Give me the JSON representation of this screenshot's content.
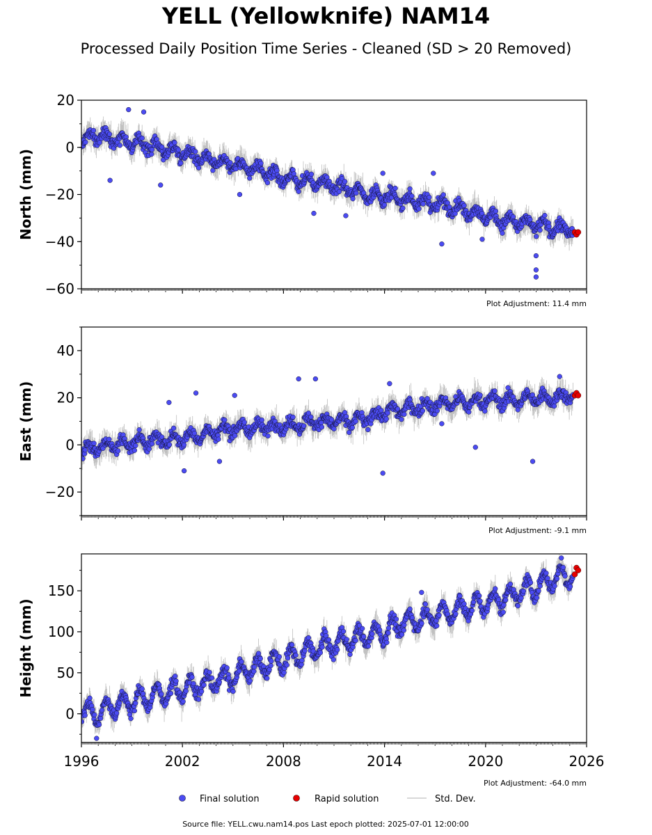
{
  "title": "YELL (Yellowknife) NAM14",
  "subtitle": "Processed Daily Position Time Series - Cleaned (SD > 20 Removed)",
  "footer": "Source file: YELL.cwu.nam14.pos  Last epoch plotted: 2025-07-01 12:00:00",
  "legend": {
    "placement": "bottom-center",
    "items": [
      {
        "label": "Final solution",
        "color": "#4444ee",
        "kind": "dot"
      },
      {
        "label": "Rapid solution",
        "color": "#ee0000",
        "kind": "dot"
      },
      {
        "label": "Std. Dev.",
        "color": "#cccccc",
        "kind": "line"
      }
    ]
  },
  "colors": {
    "final": "#4b4bf2",
    "final_edge": "#111133",
    "rapid": "#e60000",
    "std": "#bdbdbd"
  },
  "chart_data": [
    {
      "type": "scatter",
      "ylabel": "North (mm)",
      "adjustment": "Plot Adjustment: 11.4 mm",
      "xlim": [
        1996,
        2026
      ],
      "ylim": [
        -60,
        20
      ],
      "yticks": [
        20,
        0,
        -20,
        -40,
        -60
      ],
      "show_xtick_labels": false,
      "trend": {
        "start": 4,
        "end": -34
      },
      "series": [
        {
          "name": "Final solution",
          "kind": "final",
          "x": [
            1996.0,
            1997.0,
            1998.0,
            1999.0,
            2000.0,
            2001.0,
            2002.0,
            2003.0,
            2004.0,
            2005.0,
            2006.0,
            2007.0,
            2008.0,
            2009.0,
            2010.0,
            2011.0,
            2012.0,
            2013.0,
            2014.0,
            2015.0,
            2016.0,
            2017.0,
            2018.0,
            2019.0,
            2020.0,
            2021.0,
            2022.0,
            2023.0,
            2024.0,
            2025.0
          ],
          "y": [
            3,
            5,
            4,
            2,
            1,
            -1,
            -2,
            -4,
            -6,
            -7,
            -9,
            -11,
            -13,
            -14,
            -15,
            -16,
            -18,
            -20,
            -21,
            -22,
            -23,
            -24,
            -25,
            -27,
            -29,
            -31,
            -32,
            -33,
            -34,
            -35
          ]
        },
        {
          "name": "Rapid solution",
          "kind": "rapid",
          "x": [
            2025.3,
            2025.4,
            2025.5
          ],
          "y": [
            -36,
            -37,
            -36
          ]
        }
      ],
      "outliers": [
        {
          "x": 1998.8,
          "y": 16
        },
        {
          "x": 1999.7,
          "y": 15
        },
        {
          "x": 2000.7,
          "y": -16
        },
        {
          "x": 1997.7,
          "y": -14
        },
        {
          "x": 2005.4,
          "y": -20
        },
        {
          "x": 2009.8,
          "y": -28
        },
        {
          "x": 2011.7,
          "y": -29
        },
        {
          "x": 2013.9,
          "y": -11
        },
        {
          "x": 2016.9,
          "y": -11
        },
        {
          "x": 2017.4,
          "y": -41
        },
        {
          "x": 2019.8,
          "y": -39
        },
        {
          "x": 2023.0,
          "y": -46
        },
        {
          "x": 2023.0,
          "y": -52
        },
        {
          "x": 2023.0,
          "y": -55
        }
      ]
    },
    {
      "type": "scatter",
      "ylabel": "East (mm)",
      "adjustment": "Plot Adjustment: -9.1 mm",
      "xlim": [
        1996,
        2026
      ],
      "ylim": [
        -30,
        50
      ],
      "yticks": [
        40,
        20,
        0,
        -20
      ],
      "show_xtick_labels": false,
      "trend": {
        "start": -2,
        "end": 22
      },
      "series": [
        {
          "name": "Final solution",
          "kind": "final",
          "x": [
            1996.0,
            1997.0,
            1998.0,
            1999.0,
            2000.0,
            2001.0,
            2002.0,
            2003.0,
            2004.0,
            2005.0,
            2006.0,
            2007.0,
            2008.0,
            2009.0,
            2010.0,
            2011.0,
            2012.0,
            2013.0,
            2014.0,
            2015.0,
            2016.0,
            2017.0,
            2018.0,
            2019.0,
            2020.0,
            2021.0,
            2022.0,
            2023.0,
            2024.0,
            2025.0
          ],
          "y": [
            -2,
            -1,
            0,
            1,
            2,
            2,
            3,
            4,
            6,
            7,
            7,
            8,
            8,
            9,
            10,
            10,
            10,
            11,
            14,
            15,
            16,
            17,
            18,
            18,
            19,
            19,
            19,
            20,
            20,
            21
          ]
        },
        {
          "name": "Rapid solution",
          "kind": "rapid",
          "x": [
            2025.3,
            2025.4,
            2025.5
          ],
          "y": [
            21,
            22,
            21
          ]
        }
      ],
      "outliers": [
        {
          "x": 2001.2,
          "y": 18
        },
        {
          "x": 2002.1,
          "y": -11
        },
        {
          "x": 2002.8,
          "y": 22
        },
        {
          "x": 2004.2,
          "y": -7
        },
        {
          "x": 2005.1,
          "y": 21
        },
        {
          "x": 2008.9,
          "y": 28
        },
        {
          "x": 2009.9,
          "y": 28
        },
        {
          "x": 2013.9,
          "y": -12
        },
        {
          "x": 2014.3,
          "y": 26
        },
        {
          "x": 2017.4,
          "y": 9
        },
        {
          "x": 2019.4,
          "y": -1
        },
        {
          "x": 2022.8,
          "y": -7
        },
        {
          "x": 2024.4,
          "y": 29
        }
      ]
    },
    {
      "type": "scatter",
      "ylabel": "Height (mm)",
      "adjustment": "Plot Adjustment: -64.0 mm",
      "xlim": [
        1996,
        2026
      ],
      "ylim": [
        -35,
        195
      ],
      "yticks": [
        150,
        100,
        50,
        0
      ],
      "xticks": [
        1996,
        2002,
        2008,
        2014,
        2020,
        2026
      ],
      "show_xtick_labels": true,
      "trend": {
        "start": 0,
        "end": 172
      },
      "seasonal_amplitude": 12,
      "series": [
        {
          "name": "Final solution",
          "kind": "final",
          "x": [
            1996.0,
            1997.0,
            1998.0,
            1999.0,
            2000.0,
            2001.0,
            2002.0,
            2003.0,
            2004.0,
            2005.0,
            2006.0,
            2007.0,
            2008.0,
            2009.0,
            2010.0,
            2011.0,
            2012.0,
            2013.0,
            2014.0,
            2015.0,
            2016.0,
            2017.0,
            2018.0,
            2019.0,
            2020.0,
            2021.0,
            2022.0,
            2023.0,
            2024.0,
            2025.0
          ],
          "y": [
            5,
            0,
            10,
            15,
            20,
            25,
            30,
            35,
            40,
            45,
            55,
            60,
            65,
            72,
            80,
            85,
            90,
            95,
            100,
            110,
            115,
            120,
            125,
            130,
            135,
            140,
            148,
            155,
            165,
            170
          ]
        },
        {
          "name": "Rapid solution",
          "kind": "rapid",
          "x": [
            2025.3,
            2025.4,
            2025.5
          ],
          "y": [
            170,
            178,
            175
          ]
        }
      ],
      "outliers": [
        {
          "x": 1996.9,
          "y": -30
        },
        {
          "x": 2016.2,
          "y": 148
        },
        {
          "x": 2024.5,
          "y": 190
        }
      ]
    }
  ]
}
